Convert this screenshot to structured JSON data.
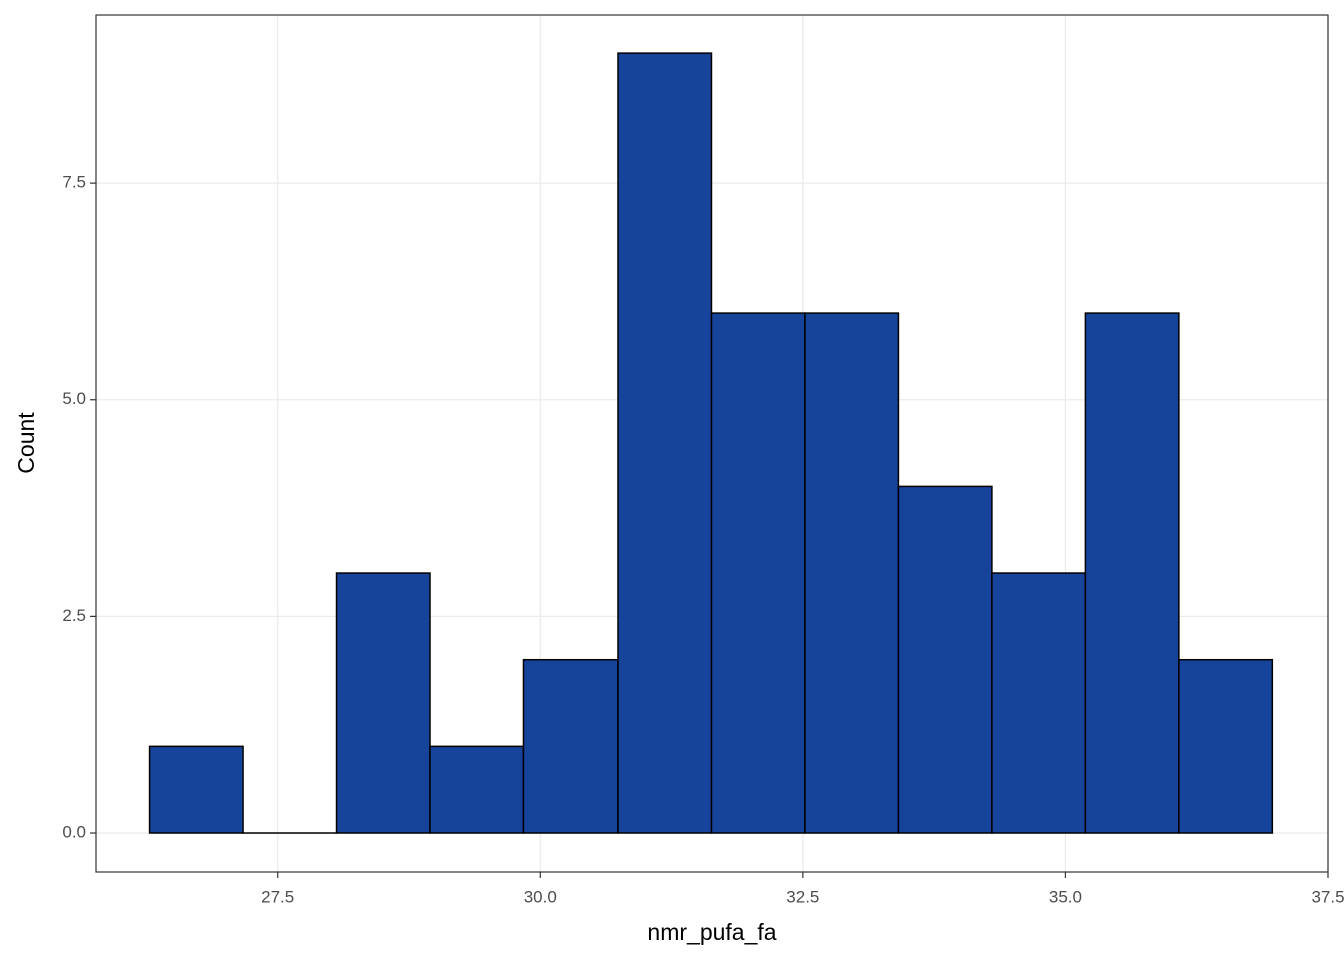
{
  "chart_data": {
    "type": "histogram",
    "x_label": "nmr_pufa_fa",
    "y_label": "Count",
    "bins": [
      26.28,
      27.17,
      28.06,
      28.95,
      29.84,
      30.74,
      31.63,
      32.52,
      33.41,
      34.3,
      35.19,
      36.08,
      36.97
    ],
    "values": [
      1,
      0,
      3,
      1,
      2,
      9,
      6,
      6,
      4,
      3,
      6,
      2
    ],
    "color": "#17449b",
    "edge_color": "#000000",
    "xlim": [
      25.77,
      37.5
    ],
    "xticks": [
      27.5,
      {
        "value": 30,
        "label": "30.0"
      },
      32.5,
      {
        "value": 35,
        "label": "35.0"
      },
      37.5
    ],
    "ylim": [
      -0.45,
      9.44
    ],
    "yticks": [
      {
        "value": 0,
        "label": "0.0"
      },
      2.5,
      {
        "value": 5,
        "label": "5.0"
      },
      7.5
    ],
    "grid": true
  }
}
